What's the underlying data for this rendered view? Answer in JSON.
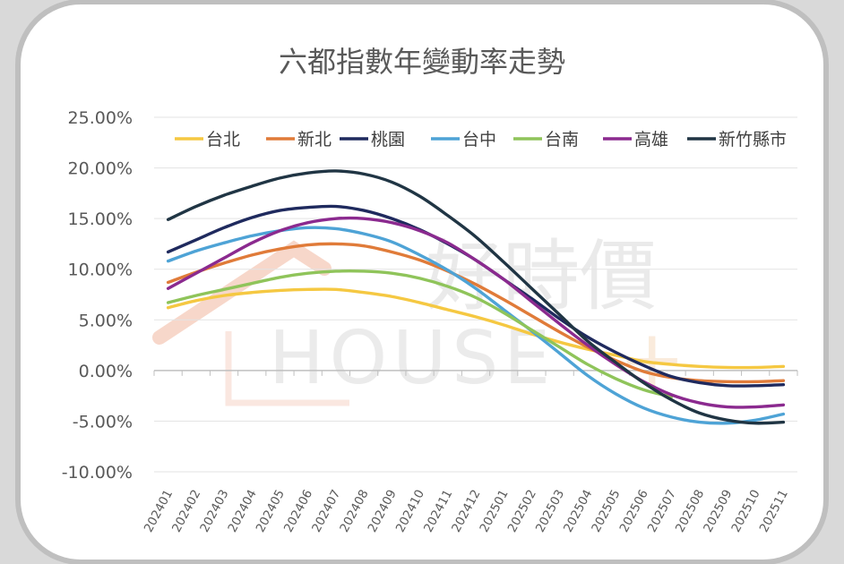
{
  "chart_data": {
    "type": "line",
    "title": "六都指數年變動率走勢",
    "xlabel": "",
    "ylabel": "",
    "ylim": [
      -10,
      25
    ],
    "yticks": [
      25,
      20,
      15,
      10,
      5,
      0,
      -5,
      -10
    ],
    "ytick_labels": [
      "25.00%",
      "20.00%",
      "15.00%",
      "10.00%",
      "5.00%",
      "0.00%",
      "-5.00%",
      "-10.00%"
    ],
    "categories": [
      "202401",
      "202402",
      "202403",
      "202404",
      "202405",
      "202406",
      "202407",
      "202408",
      "202409",
      "202410",
      "202411",
      "202412",
      "202501",
      "202502",
      "202503",
      "202504",
      "202505",
      "202506",
      "202507",
      "202508",
      "202509",
      "202510",
      "202511"
    ],
    "grid": true,
    "legend_position": "top",
    "series": [
      {
        "name": "台北",
        "color": "#f5c842",
        "values": [
          6.2,
          6.9,
          7.4,
          7.7,
          7.9,
          8.0,
          8.0,
          7.7,
          7.3,
          6.7,
          6.0,
          5.3,
          4.5,
          3.6,
          2.8,
          2.1,
          1.5,
          0.9,
          0.6,
          0.4,
          0.3,
          0.3,
          0.4
        ]
      },
      {
        "name": "新北",
        "color": "#e07b39",
        "values": [
          8.7,
          9.7,
          10.6,
          11.4,
          12.0,
          12.4,
          12.5,
          12.3,
          11.7,
          10.9,
          9.8,
          8.5,
          7.0,
          5.4,
          3.8,
          2.3,
          1.0,
          -0.1,
          -0.7,
          -1.0,
          -1.1,
          -1.1,
          -1.0
        ]
      },
      {
        "name": "桃園",
        "color": "#1f2a5e",
        "values": [
          11.7,
          12.9,
          14.1,
          15.1,
          15.8,
          16.1,
          16.2,
          15.8,
          15.0,
          13.9,
          12.5,
          10.9,
          9.0,
          7.1,
          5.1,
          3.3,
          1.8,
          0.5,
          -0.6,
          -1.2,
          -1.5,
          -1.5,
          -1.4
        ]
      },
      {
        "name": "台中",
        "color": "#4ea3d6",
        "values": [
          10.8,
          11.8,
          12.6,
          13.3,
          13.8,
          14.1,
          14.0,
          13.5,
          12.7,
          11.4,
          9.9,
          8.1,
          6.0,
          3.9,
          1.7,
          -0.5,
          -2.3,
          -3.7,
          -4.6,
          -5.1,
          -5.2,
          -4.9,
          -4.3
        ]
      },
      {
        "name": "台南",
        "color": "#8fc45a",
        "values": [
          6.7,
          7.4,
          8.0,
          8.6,
          9.2,
          9.6,
          9.8,
          9.8,
          9.6,
          9.1,
          8.3,
          7.2,
          5.7,
          4.0,
          2.3,
          0.6,
          -0.8,
          -1.9,
          -2.6,
          null,
          null,
          null,
          null
        ]
      },
      {
        "name": "高雄",
        "color": "#8b2a8f",
        "values": [
          8.1,
          9.6,
          11.1,
          12.6,
          13.8,
          14.6,
          15.0,
          15.0,
          14.6,
          13.8,
          12.6,
          10.9,
          9.0,
          6.8,
          4.6,
          2.5,
          0.6,
          -1.1,
          -2.4,
          -3.2,
          -3.6,
          -3.6,
          -3.4
        ]
      },
      {
        "name": "新竹縣市",
        "color": "#203544",
        "values": [
          14.9,
          16.2,
          17.3,
          18.2,
          19.0,
          19.5,
          19.7,
          19.4,
          18.6,
          17.2,
          15.3,
          13.2,
          10.7,
          8.1,
          5.5,
          2.9,
          0.8,
          -1.2,
          -2.9,
          -4.2,
          -4.9,
          -5.2,
          -5.1
        ]
      }
    ]
  },
  "watermark": {
    "brand_zh": "好時價",
    "brand_en": "HOUSE",
    "plus": "+"
  }
}
